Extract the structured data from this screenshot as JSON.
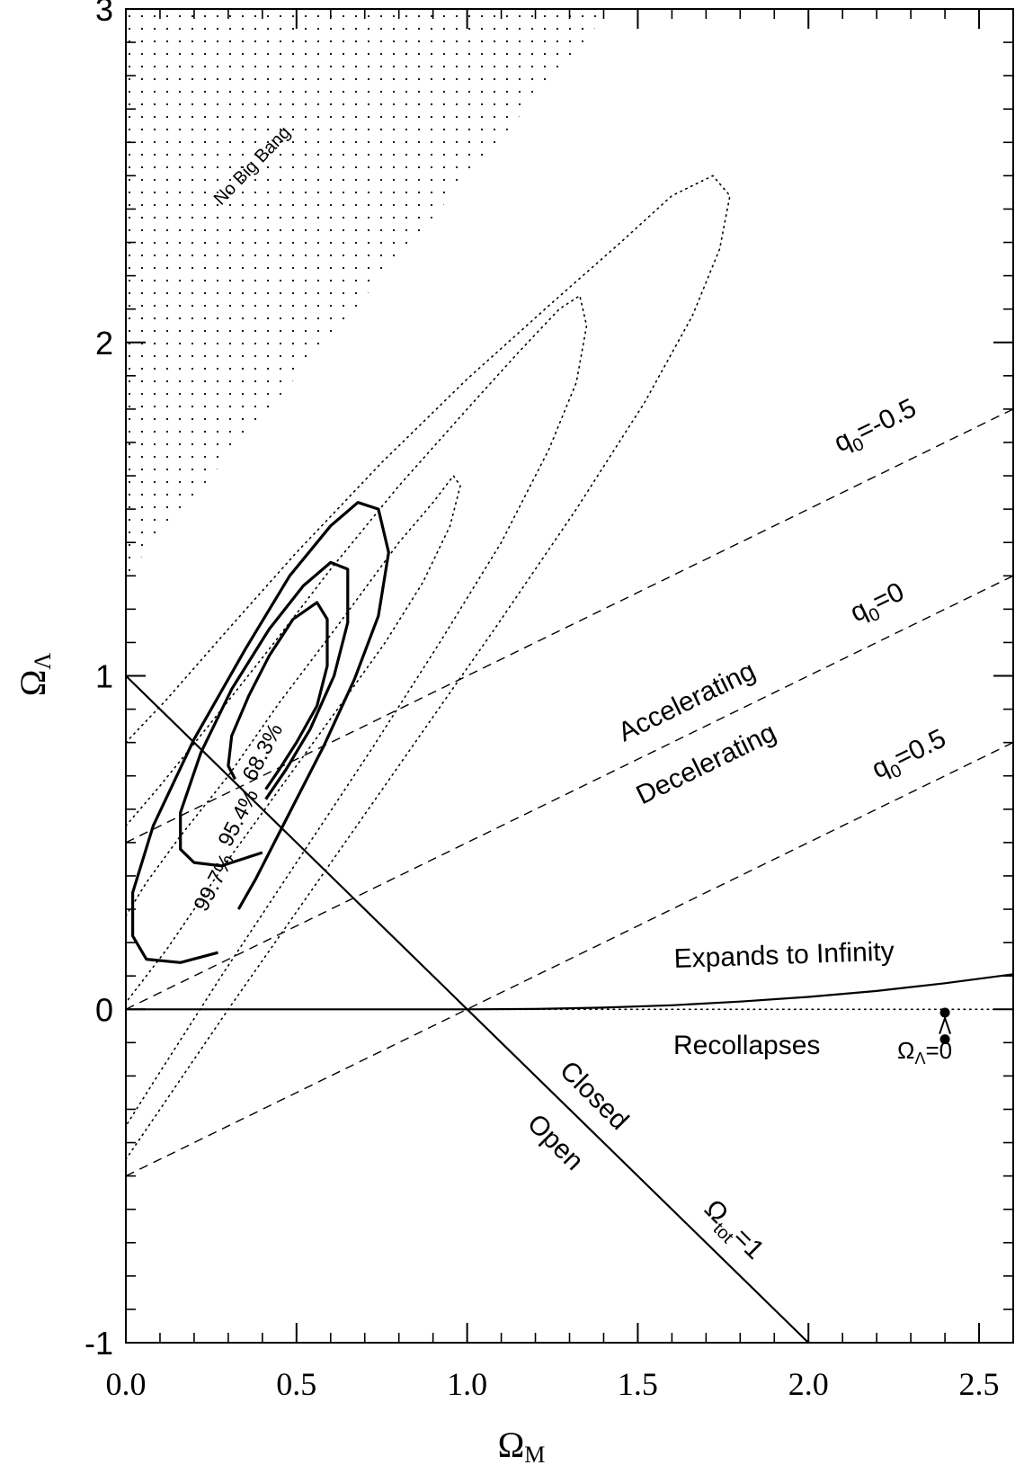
{
  "chart_data": {
    "type": "line",
    "title": "",
    "xlabel": "Ω",
    "xlabel_sub": "M",
    "ylabel": "Ω",
    "ylabel_sub": "Λ",
    "xlim": [
      0.0,
      2.6
    ],
    "ylim": [
      -1,
      3
    ],
    "x_ticks": [
      {
        "value": 0.0,
        "label": "0.0"
      },
      {
        "value": 0.5,
        "label": "0.5"
      },
      {
        "value": 1.0,
        "label": "1.0"
      },
      {
        "value": 1.5,
        "label": "1.5"
      },
      {
        "value": 2.0,
        "label": "2.0"
      },
      {
        "value": 2.5,
        "label": "2.5"
      }
    ],
    "y_ticks": [
      {
        "value": -1,
        "label": "-1"
      },
      {
        "value": 0,
        "label": "0"
      },
      {
        "value": 1,
        "label": "1"
      },
      {
        "value": 2,
        "label": "2"
      },
      {
        "value": 3,
        "label": "3"
      }
    ],
    "grid": false,
    "series": [
      {
        "style": "solid",
        "x": [
          0.0,
          2.0
        ],
        "y": [
          1.0,
          -1.0
        ]
      },
      {
        "style": "solid",
        "x": [
          0.0,
          1.0
        ],
        "y": [
          0.0,
          0.0
        ]
      },
      {
        "style": "solid",
        "x": [
          1.0,
          1.2,
          1.4,
          1.6,
          1.8,
          2.0,
          2.2,
          2.4,
          2.6
        ],
        "y": [
          0.0,
          0.001,
          0.005,
          0.012,
          0.023,
          0.037,
          0.055,
          0.078,
          0.105
        ]
      },
      {
        "style": "dotted",
        "x": [
          1.0,
          2.6
        ],
        "y": [
          0.0,
          0.0
        ]
      },
      {
        "style": "dashed",
        "x": [
          0.0,
          2.6
        ],
        "y": [
          -0.5,
          0.8
        ]
      },
      {
        "style": "dashed",
        "x": [
          0.0,
          2.6
        ],
        "y": [
          0.0,
          1.3
        ]
      },
      {
        "style": "dashed",
        "x": [
          0.0,
          2.6
        ],
        "y": [
          0.5,
          1.8
        ]
      },
      {
        "style": "solid-contour",
        "x": [
          0.32,
          0.3,
          0.31,
          0.36,
          0.42,
          0.49,
          0.56,
          0.59,
          0.59,
          0.56,
          0.5,
          0.45,
          0.41
        ],
        "y": [
          0.69,
          0.73,
          0.82,
          0.94,
          1.06,
          1.17,
          1.22,
          1.17,
          1.03,
          0.91,
          0.8,
          0.72,
          0.66
        ]
      },
      {
        "style": "solid-contour",
        "x": [
          0.4,
          0.28,
          0.2,
          0.16,
          0.16,
          0.22,
          0.31,
          0.42,
          0.52,
          0.6,
          0.65,
          0.65,
          0.61,
          0.54,
          0.47,
          0.41
        ],
        "y": [
          0.47,
          0.43,
          0.44,
          0.48,
          0.59,
          0.77,
          0.96,
          1.14,
          1.27,
          1.34,
          1.32,
          1.16,
          1.0,
          0.84,
          0.72,
          0.63
        ]
      },
      {
        "style": "solid-contour",
        "x": [
          0.27,
          0.16,
          0.06,
          0.02,
          0.02,
          0.08,
          0.2,
          0.35,
          0.48,
          0.6,
          0.68,
          0.74,
          0.77,
          0.74,
          0.67,
          0.58,
          0.48,
          0.38,
          0.33
        ],
        "y": [
          0.17,
          0.14,
          0.15,
          0.22,
          0.35,
          0.55,
          0.81,
          1.08,
          1.3,
          1.45,
          1.52,
          1.5,
          1.37,
          1.18,
          0.99,
          0.79,
          0.59,
          0.39,
          0.3
        ]
      },
      {
        "style": "dotted",
        "x": [
          0.0,
          0.06,
          0.16,
          0.3,
          0.45,
          0.62,
          0.8,
          0.9,
          0.96,
          0.98,
          0.95,
          0.87,
          0.76,
          0.62,
          0.45,
          0.28,
          0.12,
          0.0
        ],
        "y": [
          0.28,
          0.38,
          0.52,
          0.7,
          0.92,
          1.15,
          1.4,
          1.52,
          1.6,
          1.57,
          1.45,
          1.28,
          1.1,
          0.9,
          0.66,
          0.42,
          0.18,
          0.02
        ]
      },
      {
        "style": "dotted",
        "x": [
          0.0,
          0.1,
          0.25,
          0.42,
          0.6,
          0.8,
          1.0,
          1.15,
          1.27,
          1.33,
          1.35,
          1.32,
          1.24,
          1.1,
          0.92,
          0.72,
          0.5,
          0.28,
          0.08,
          0.0
        ],
        "y": [
          0.55,
          0.67,
          0.86,
          1.08,
          1.32,
          1.57,
          1.8,
          1.97,
          2.1,
          2.14,
          2.05,
          1.88,
          1.68,
          1.4,
          1.1,
          0.78,
          0.44,
          0.1,
          -0.22,
          -0.35
        ]
      },
      {
        "style": "dotted",
        "x": [
          0.0,
          0.12,
          0.3,
          0.5,
          0.75,
          1.0,
          1.25,
          1.45,
          1.6,
          1.72,
          1.77,
          1.74,
          1.66,
          1.52,
          1.32,
          1.08,
          0.82,
          0.56,
          0.3,
          0.08,
          0.0
        ],
        "y": [
          0.8,
          0.93,
          1.14,
          1.37,
          1.64,
          1.89,
          2.12,
          2.3,
          2.44,
          2.5,
          2.44,
          2.28,
          2.08,
          1.82,
          1.5,
          1.14,
          0.76,
          0.38,
          0.0,
          -0.33,
          -0.45
        ]
      },
      {
        "style": "marker",
        "x": [
          2.4,
          2.4
        ],
        "y": [
          -0.01,
          -0.09
        ]
      }
    ],
    "annotations": {
      "no_big_bang": "No Big Bang",
      "q_neg": "=-0.5",
      "q_zero": "=0",
      "q_pos": "=0.5",
      "q_symbol": "q",
      "q_sub": "0",
      "accelerating": "Accelerating",
      "decelerating": "Decelerating",
      "expands": "Expands to Infinity",
      "recollapses": "Recollapses",
      "closed": "Closed",
      "open": "Open",
      "omega": "Ω",
      "tot_sub": "tot",
      "tot_value": "=1",
      "lambda_sub": "Λ",
      "lambda_value": "=0",
      "c683": "68.3%",
      "c954": "95.4%",
      "c997": "99.7%"
    }
  }
}
